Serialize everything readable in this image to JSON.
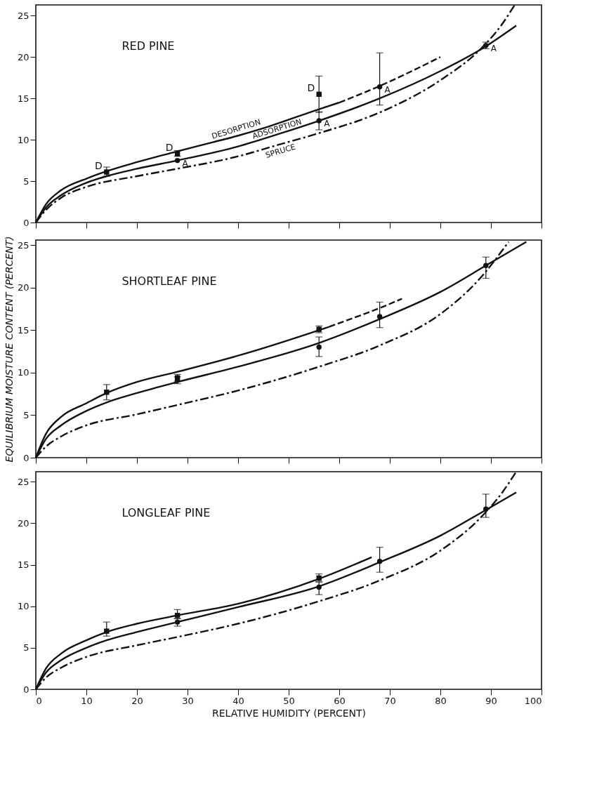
{
  "chart_data": [
    {
      "type": "line",
      "title": "RED PINE",
      "xlim": [
        0,
        100
      ],
      "ylim": [
        0,
        26.3
      ],
      "xticks": [
        0,
        10,
        20,
        30,
        40,
        50,
        60,
        70,
        80,
        90,
        100
      ],
      "yticks": [
        0,
        5,
        10,
        15,
        20,
        25
      ],
      "tick_labels": "y",
      "series": [
        {
          "line_style": "solid",
          "color": "#111111",
          "x": [
            0,
            2,
            5,
            10,
            14,
            20,
            28,
            35,
            40,
            45,
            56,
            60
          ],
          "values": [
            0,
            2.2,
            3.9,
            5.3,
            6.2,
            7.3,
            8.6,
            9.7,
            10.5,
            11.4,
            13.7,
            14.5
          ]
        },
        {
          "line_style": "dashed",
          "color": "#111111",
          "x": [
            60,
            68,
            74,
            80
          ],
          "values": [
            14.5,
            16.5,
            18.2,
            20.0
          ]
        },
        {
          "line_style": "solid",
          "color": "#111111",
          "x": [
            0,
            2,
            5,
            10,
            14,
            20,
            28,
            40,
            48,
            56,
            68,
            80,
            89,
            95
          ],
          "values": [
            0,
            1.8,
            3.3,
            4.8,
            5.6,
            6.5,
            7.5,
            9.2,
            10.7,
            12.3,
            15.0,
            18.3,
            21.3,
            23.8
          ]
        },
        {
          "line_style": "dashdot",
          "color": "#111111",
          "x": [
            0,
            2,
            5,
            10,
            20,
            28,
            40,
            48,
            56,
            68,
            80,
            88,
            92,
            94.7
          ],
          "values": [
            0,
            1.5,
            3.0,
            4.3,
            5.6,
            6.5,
            8.0,
            9.4,
            10.8,
            13.3,
            17.2,
            21.0,
            23.8,
            26.3
          ]
        },
        {
          "type": "scatter",
          "marker": "square",
          "color": "#111111",
          "x": [
            14,
            28,
            56
          ],
          "values": [
            6.1,
            8.3,
            15.5
          ],
          "errors": [
            [
              5.6,
              6.7
            ],
            [
              8.0,
              8.7
            ],
            [
              13.3,
              17.7
            ]
          ]
        },
        {
          "type": "scatter",
          "marker": "circle",
          "color": "#111111",
          "x": [
            28,
            56,
            68,
            89
          ],
          "values": [
            7.5,
            12.3,
            16.4,
            21.4
          ],
          "errors": [
            null,
            [
              11.2,
              13.4
            ],
            [
              14.2,
              20.5
            ],
            [
              21.0,
              21.8
            ]
          ]
        }
      ],
      "annotations": [
        {
          "text": "DESORPTION",
          "x": 40,
          "y": 10.5
        },
        {
          "text": "ADSORPTION",
          "x": 48,
          "y": 10.7
        },
        {
          "text": "SPRUCE",
          "x": 48,
          "y": 9.4
        },
        {
          "text": "D",
          "x": 14,
          "y": 6.1
        },
        {
          "text": "D",
          "x": 28,
          "y": 8.3
        },
        {
          "text": "D",
          "x": 56,
          "y": 15.5
        },
        {
          "text": "A",
          "x": 28,
          "y": 7.5
        },
        {
          "text": "A",
          "x": 56,
          "y": 12.3
        },
        {
          "text": "A",
          "x": 68,
          "y": 16.4
        },
        {
          "text": "A",
          "x": 89,
          "y": 21.4
        }
      ]
    },
    {
      "type": "line",
      "title": "SHORTLEAF PINE",
      "ylabel": "EQUILIBRIUM MOISTURE CONTENT (PERCENT)",
      "xlim": [
        0,
        100
      ],
      "ylim": [
        0,
        25.6
      ],
      "xticks": [
        0,
        10,
        20,
        30,
        40,
        50,
        60,
        70,
        80,
        90,
        100
      ],
      "yticks": [
        0,
        5,
        10,
        15,
        20,
        25
      ],
      "tick_labels": "y",
      "series": [
        {
          "line_style": "solid",
          "color": "#111111",
          "x": [
            0,
            2,
            5,
            10,
            14,
            20,
            28,
            40,
            56,
            58
          ],
          "values": [
            0,
            2.8,
            4.8,
            6.4,
            7.6,
            8.9,
            10.1,
            12.0,
            15.0,
            15.4
          ]
        },
        {
          "line_style": "dashed",
          "color": "#111111",
          "x": [
            58,
            64,
            68,
            72.4
          ],
          "values": [
            15.4,
            16.7,
            17.6,
            18.7
          ]
        },
        {
          "line_style": "solid",
          "color": "#111111",
          "x": [
            0,
            2,
            5,
            10,
            14,
            20,
            28,
            40,
            56,
            68,
            80,
            89,
            97
          ],
          "values": [
            0,
            2.2,
            3.8,
            5.5,
            6.5,
            7.6,
            8.9,
            10.7,
            13.5,
            16.3,
            19.5,
            22.6,
            25.4
          ]
        },
        {
          "line_style": "dashdot",
          "color": "#111111",
          "x": [
            0,
            2,
            5,
            10,
            20,
            28,
            40,
            56,
            68,
            80,
            88,
            93.5
          ],
          "values": [
            0,
            1.3,
            2.5,
            3.8,
            5.1,
            6.2,
            7.9,
            10.7,
            13.2,
            16.9,
            21.2,
            25.4
          ]
        },
        {
          "type": "scatter",
          "marker": "square",
          "color": "#111111",
          "x": [
            14,
            28,
            56
          ],
          "values": [
            7.7,
            9.4,
            15.1
          ],
          "errors": [
            [
              6.8,
              8.6
            ],
            [
              9.0,
              9.8
            ],
            [
              14.7,
              15.5
            ]
          ]
        },
        {
          "type": "scatter",
          "marker": "circle",
          "color": "#111111",
          "x": [
            28,
            56,
            68,
            89
          ],
          "values": [
            9.1,
            13.0,
            16.6,
            22.6
          ],
          "errors": [
            [
              8.7,
              9.5
            ],
            [
              11.9,
              14.2
            ],
            [
              15.3,
              18.3
            ],
            [
              21.1,
              23.6
            ]
          ]
        }
      ]
    },
    {
      "type": "line",
      "title": "LONGLEAF PINE",
      "xlabel": "RELATIVE HUMIDITY (PERCENT)",
      "xlim": [
        0,
        100
      ],
      "ylim": [
        0,
        26.2
      ],
      "xticks": [
        0,
        10,
        20,
        30,
        40,
        50,
        60,
        70,
        80,
        90,
        100
      ],
      "yticks": [
        0,
        5,
        10,
        15,
        20,
        25
      ],
      "series": [
        {
          "line_style": "solid",
          "color": "#111111",
          "x": [
            0,
            2,
            5,
            10,
            14,
            20,
            28,
            40,
            56,
            66.4
          ],
          "values": [
            0,
            2.5,
            4.3,
            5.9,
            6.9,
            7.9,
            8.9,
            10.3,
            13.3,
            15.9
          ]
        },
        {
          "line_style": "solid",
          "color": "#111111",
          "x": [
            0,
            2,
            5,
            10,
            14,
            20,
            28,
            40,
            56,
            68,
            80,
            89,
            95
          ],
          "values": [
            0,
            2.0,
            3.5,
            5.0,
            5.9,
            6.9,
            8.1,
            9.9,
            12.4,
            15.3,
            18.5,
            21.6,
            23.7
          ]
        },
        {
          "line_style": "dashdot",
          "color": "#111111",
          "x": [
            0,
            2,
            5,
            10,
            20,
            28,
            40,
            56,
            68,
            80,
            88,
            92,
            95
          ],
          "values": [
            0,
            1.4,
            2.6,
            3.9,
            5.3,
            6.3,
            7.9,
            10.6,
            13.1,
            16.7,
            20.7,
            23.5,
            26.2
          ]
        },
        {
          "type": "scatter",
          "marker": "square",
          "color": "#111111",
          "x": [
            14,
            28,
            56
          ],
          "values": [
            7.0,
            8.9,
            13.4
          ],
          "errors": [
            [
              6.4,
              8.1
            ],
            [
              8.5,
              9.6
            ],
            [
              13.0,
              13.9
            ]
          ]
        },
        {
          "type": "scatter",
          "marker": "circle",
          "color": "#111111",
          "x": [
            28,
            56,
            68,
            89
          ],
          "values": [
            8.1,
            12.3,
            15.4,
            21.7
          ],
          "errors": [
            [
              7.6,
              8.5
            ],
            [
              11.4,
              12.9
            ],
            [
              14.1,
              17.1
            ],
            [
              20.7,
              23.5
            ]
          ]
        }
      ]
    }
  ]
}
